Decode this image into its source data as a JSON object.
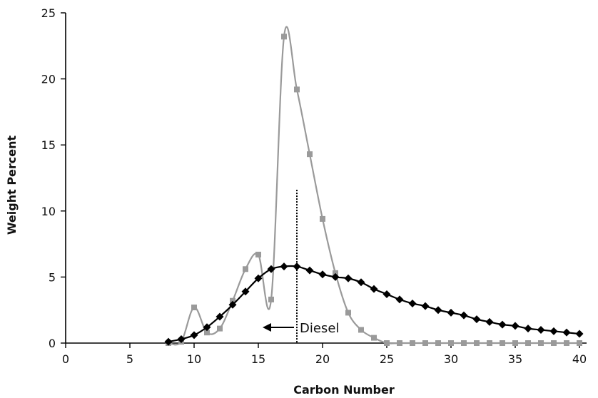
{
  "chart_data": {
    "type": "line",
    "title": "",
    "xlabel": "Carbon Number",
    "ylabel": "Weight Percent",
    "xlim": [
      0,
      40
    ],
    "ylim": [
      0,
      25
    ],
    "x_ticks": [
      "0",
      "5",
      "10",
      "15",
      "20",
      "25",
      "30",
      "35",
      "40"
    ],
    "y_ticks": [
      "0",
      "5",
      "10",
      "15",
      "20",
      "25"
    ],
    "grid": false,
    "legend": "none",
    "series": [
      {
        "marker": "square",
        "color": "#9a9a9a",
        "points": [
          [
            8,
            0
          ],
          [
            9,
            0.1
          ],
          [
            10,
            2.7
          ],
          [
            11,
            0.8
          ],
          [
            12,
            1.1
          ],
          [
            13,
            3.2
          ],
          [
            14,
            5.6
          ],
          [
            15,
            6.7
          ],
          [
            16,
            3.3
          ],
          [
            17,
            23.2
          ],
          [
            18,
            19.2
          ],
          [
            19,
            14.3
          ],
          [
            20,
            9.4
          ],
          [
            21,
            5.3
          ],
          [
            22,
            2.3
          ],
          [
            23,
            1.0
          ],
          [
            24,
            0.4
          ],
          [
            25,
            0
          ],
          [
            26,
            0
          ],
          [
            27,
            0
          ],
          [
            28,
            0
          ],
          [
            29,
            0
          ],
          [
            30,
            0
          ],
          [
            31,
            0
          ],
          [
            32,
            0
          ],
          [
            33,
            0
          ],
          [
            34,
            0
          ],
          [
            35,
            0
          ],
          [
            36,
            0
          ],
          [
            37,
            0
          ],
          [
            38,
            0
          ],
          [
            39,
            0
          ],
          [
            40,
            0
          ]
        ]
      },
      {
        "marker": "diamond",
        "color": "#000000",
        "points": [
          [
            8,
            0.1
          ],
          [
            9,
            0.3
          ],
          [
            10,
            0.6
          ],
          [
            11,
            1.2
          ],
          [
            12,
            2.0
          ],
          [
            13,
            2.9
          ],
          [
            14,
            3.9
          ],
          [
            15,
            4.9
          ],
          [
            16,
            5.6
          ],
          [
            17,
            5.8
          ],
          [
            18,
            5.8
          ],
          [
            19,
            5.5
          ],
          [
            20,
            5.2
          ],
          [
            21,
            5.0
          ],
          [
            22,
            4.9
          ],
          [
            23,
            4.6
          ],
          [
            24,
            4.1
          ],
          [
            25,
            3.7
          ],
          [
            26,
            3.3
          ],
          [
            27,
            3.0
          ],
          [
            28,
            2.8
          ],
          [
            29,
            2.5
          ],
          [
            30,
            2.3
          ],
          [
            31,
            2.1
          ],
          [
            32,
            1.8
          ],
          [
            33,
            1.6
          ],
          [
            34,
            1.4
          ],
          [
            35,
            1.3
          ],
          [
            36,
            1.1
          ],
          [
            37,
            1.0
          ],
          [
            38,
            0.9
          ],
          [
            39,
            0.8
          ],
          [
            40,
            0.7
          ]
        ]
      }
    ],
    "annotations": {
      "diesel_label": "Diesel",
      "diesel_marker_x": 18,
      "diesel_marker_y_top": 11.6
    }
  }
}
